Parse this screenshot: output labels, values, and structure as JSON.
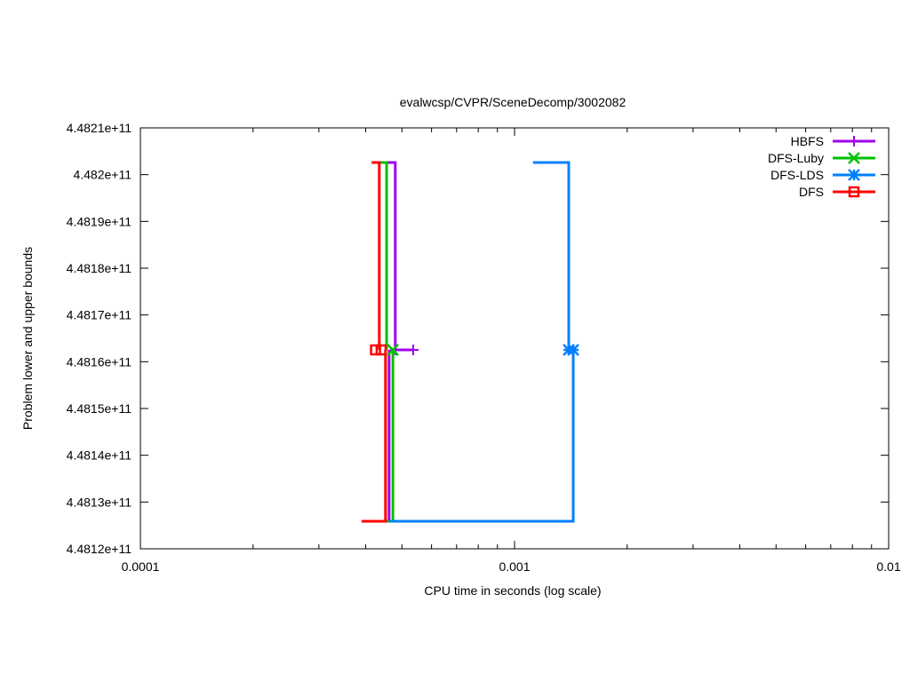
{
  "chart_data": {
    "type": "line",
    "title": "evalwcsp/CVPR/SceneDecomp/3002082",
    "xlabel": "CPU time in seconds (log scale)",
    "ylabel": "Problem lower and upper bounds",
    "xscale": "log",
    "xlim": [
      0.0001,
      0.01
    ],
    "ylim": [
      448120000000,
      448210000000
    ],
    "xticks": [
      0.0001,
      0.001,
      0.01
    ],
    "xtick_labels": [
      "0.0001",
      "0.001",
      "0.01"
    ],
    "yticks": [
      448120000000,
      448130000000,
      448140000000,
      448150000000,
      448160000000,
      448170000000,
      448180000000,
      448190000000,
      448200000000,
      448210000000
    ],
    "ytick_labels": [
      "4.4812e+11",
      "4.4813e+11",
      "4.4814e+11",
      "4.4815e+11",
      "4.4816e+11",
      "4.4817e+11",
      "4.4818e+11",
      "4.4819e+11",
      "4.482e+11",
      "4.4821e+11"
    ],
    "grid": false,
    "legend_position": "top-right",
    "series": [
      {
        "name": "HBFS",
        "color": "#a000f0",
        "marker": "plus",
        "upper": [
          [
            0.000455,
            448202600000
          ],
          [
            0.00048,
            448202600000
          ],
          [
            0.00048,
            448162530000
          ],
          [
            0.000536,
            448162530000
          ]
        ],
        "lower": [
          [
            0.000452,
            448125890000
          ],
          [
            0.000462,
            448125890000
          ],
          [
            0.000462,
            448162530000
          ]
        ],
        "markers": [
          [
            0.00048,
            448162530000
          ],
          [
            0.000536,
            448162530000
          ]
        ]
      },
      {
        "name": "DFS-Luby",
        "color": "#00c000",
        "marker": "cross",
        "upper": [
          [
            0.000435,
            448202600000
          ],
          [
            0.000455,
            448202600000
          ],
          [
            0.000455,
            448162530000
          ]
        ],
        "lower": [
          [
            0.000452,
            448125890000
          ],
          [
            0.000473,
            448125890000
          ],
          [
            0.000473,
            448162530000
          ]
        ],
        "markers": [
          [
            0.000473,
            448162530000
          ]
        ]
      },
      {
        "name": "DFS-LDS",
        "color": "#0080ff",
        "marker": "star",
        "upper": [
          [
            0.00112,
            448202600000
          ],
          [
            0.001396,
            448202600000
          ],
          [
            0.001396,
            448162530000
          ]
        ],
        "lower": [
          [
            0.000462,
            448125890000
          ],
          [
            0.001435,
            448125890000
          ],
          [
            0.001435,
            448162530000
          ]
        ],
        "markers": [
          [
            0.001396,
            448162530000
          ],
          [
            0.001435,
            448162530000
          ]
        ]
      },
      {
        "name": "DFS",
        "color": "#ff0000",
        "marker": "square",
        "upper": [
          [
            0.000415,
            448202600000
          ],
          [
            0.000435,
            448202600000
          ],
          [
            0.000435,
            448162530000
          ]
        ],
        "lower": [
          [
            0.00039,
            448125890000
          ],
          [
            0.000452,
            448125890000
          ],
          [
            0.000452,
            448162530000
          ]
        ],
        "markers": [
          [
            0.000425,
            448162530000
          ],
          [
            0.00044,
            448162530000
          ]
        ]
      }
    ]
  }
}
